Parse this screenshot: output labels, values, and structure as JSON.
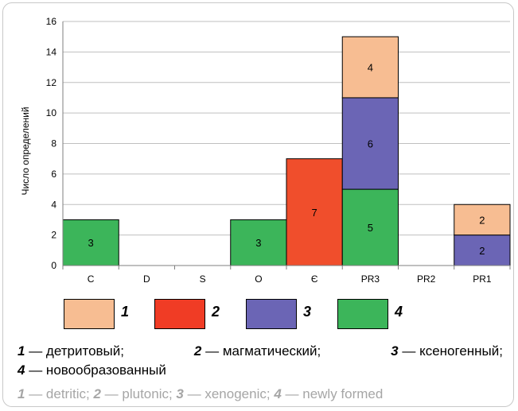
{
  "chart_data": {
    "type": "bar",
    "stacked": true,
    "categories": [
      "C",
      "D",
      "S",
      "O",
      "Є",
      "PR3",
      "PR2",
      "PR1"
    ],
    "ylabel": "Число определений",
    "ylim": [
      0,
      16
    ],
    "yticks": [
      0,
      2,
      4,
      6,
      8,
      10,
      12,
      14,
      16
    ],
    "grid": true,
    "series": [
      {
        "key": "4",
        "color": "#3cb55a",
        "values": [
          3,
          0,
          0,
          3,
          0,
          5,
          0,
          0
        ]
      },
      {
        "key": "2",
        "color": "#f04e2c",
        "values": [
          0,
          0,
          0,
          0,
          7,
          0,
          0,
          0
        ]
      },
      {
        "key": "3",
        "color": "#6b65b5",
        "values": [
          0,
          0,
          0,
          0,
          0,
          6,
          0,
          2
        ]
      },
      {
        "key": "1",
        "color": "#f7bd92",
        "values": [
          0,
          0,
          0,
          0,
          0,
          4,
          0,
          2
        ]
      }
    ]
  },
  "legend": {
    "swatches": [
      {
        "key": "1",
        "color": "#f7bd92"
      },
      {
        "key": "2",
        "color": "#f03c25"
      },
      {
        "key": "3",
        "color": "#6b65b5"
      },
      {
        "key": "4",
        "color": "#3cb55a"
      }
    ],
    "ru": {
      "k1": "1",
      "t1": "— детритовый;",
      "k2": "2",
      "t2": "— магматический;",
      "k3": "3",
      "t3": "— ксеногенный;",
      "k4": "4",
      "t4": "— новообразованный"
    },
    "en": {
      "k1": "1",
      "t1": "— detritic; ",
      "k2": "2",
      "t2": "— plutonic; ",
      "k3": "3",
      "t3": "— xenogenic; ",
      "k4": "4",
      "t4": "— newly formed"
    }
  }
}
